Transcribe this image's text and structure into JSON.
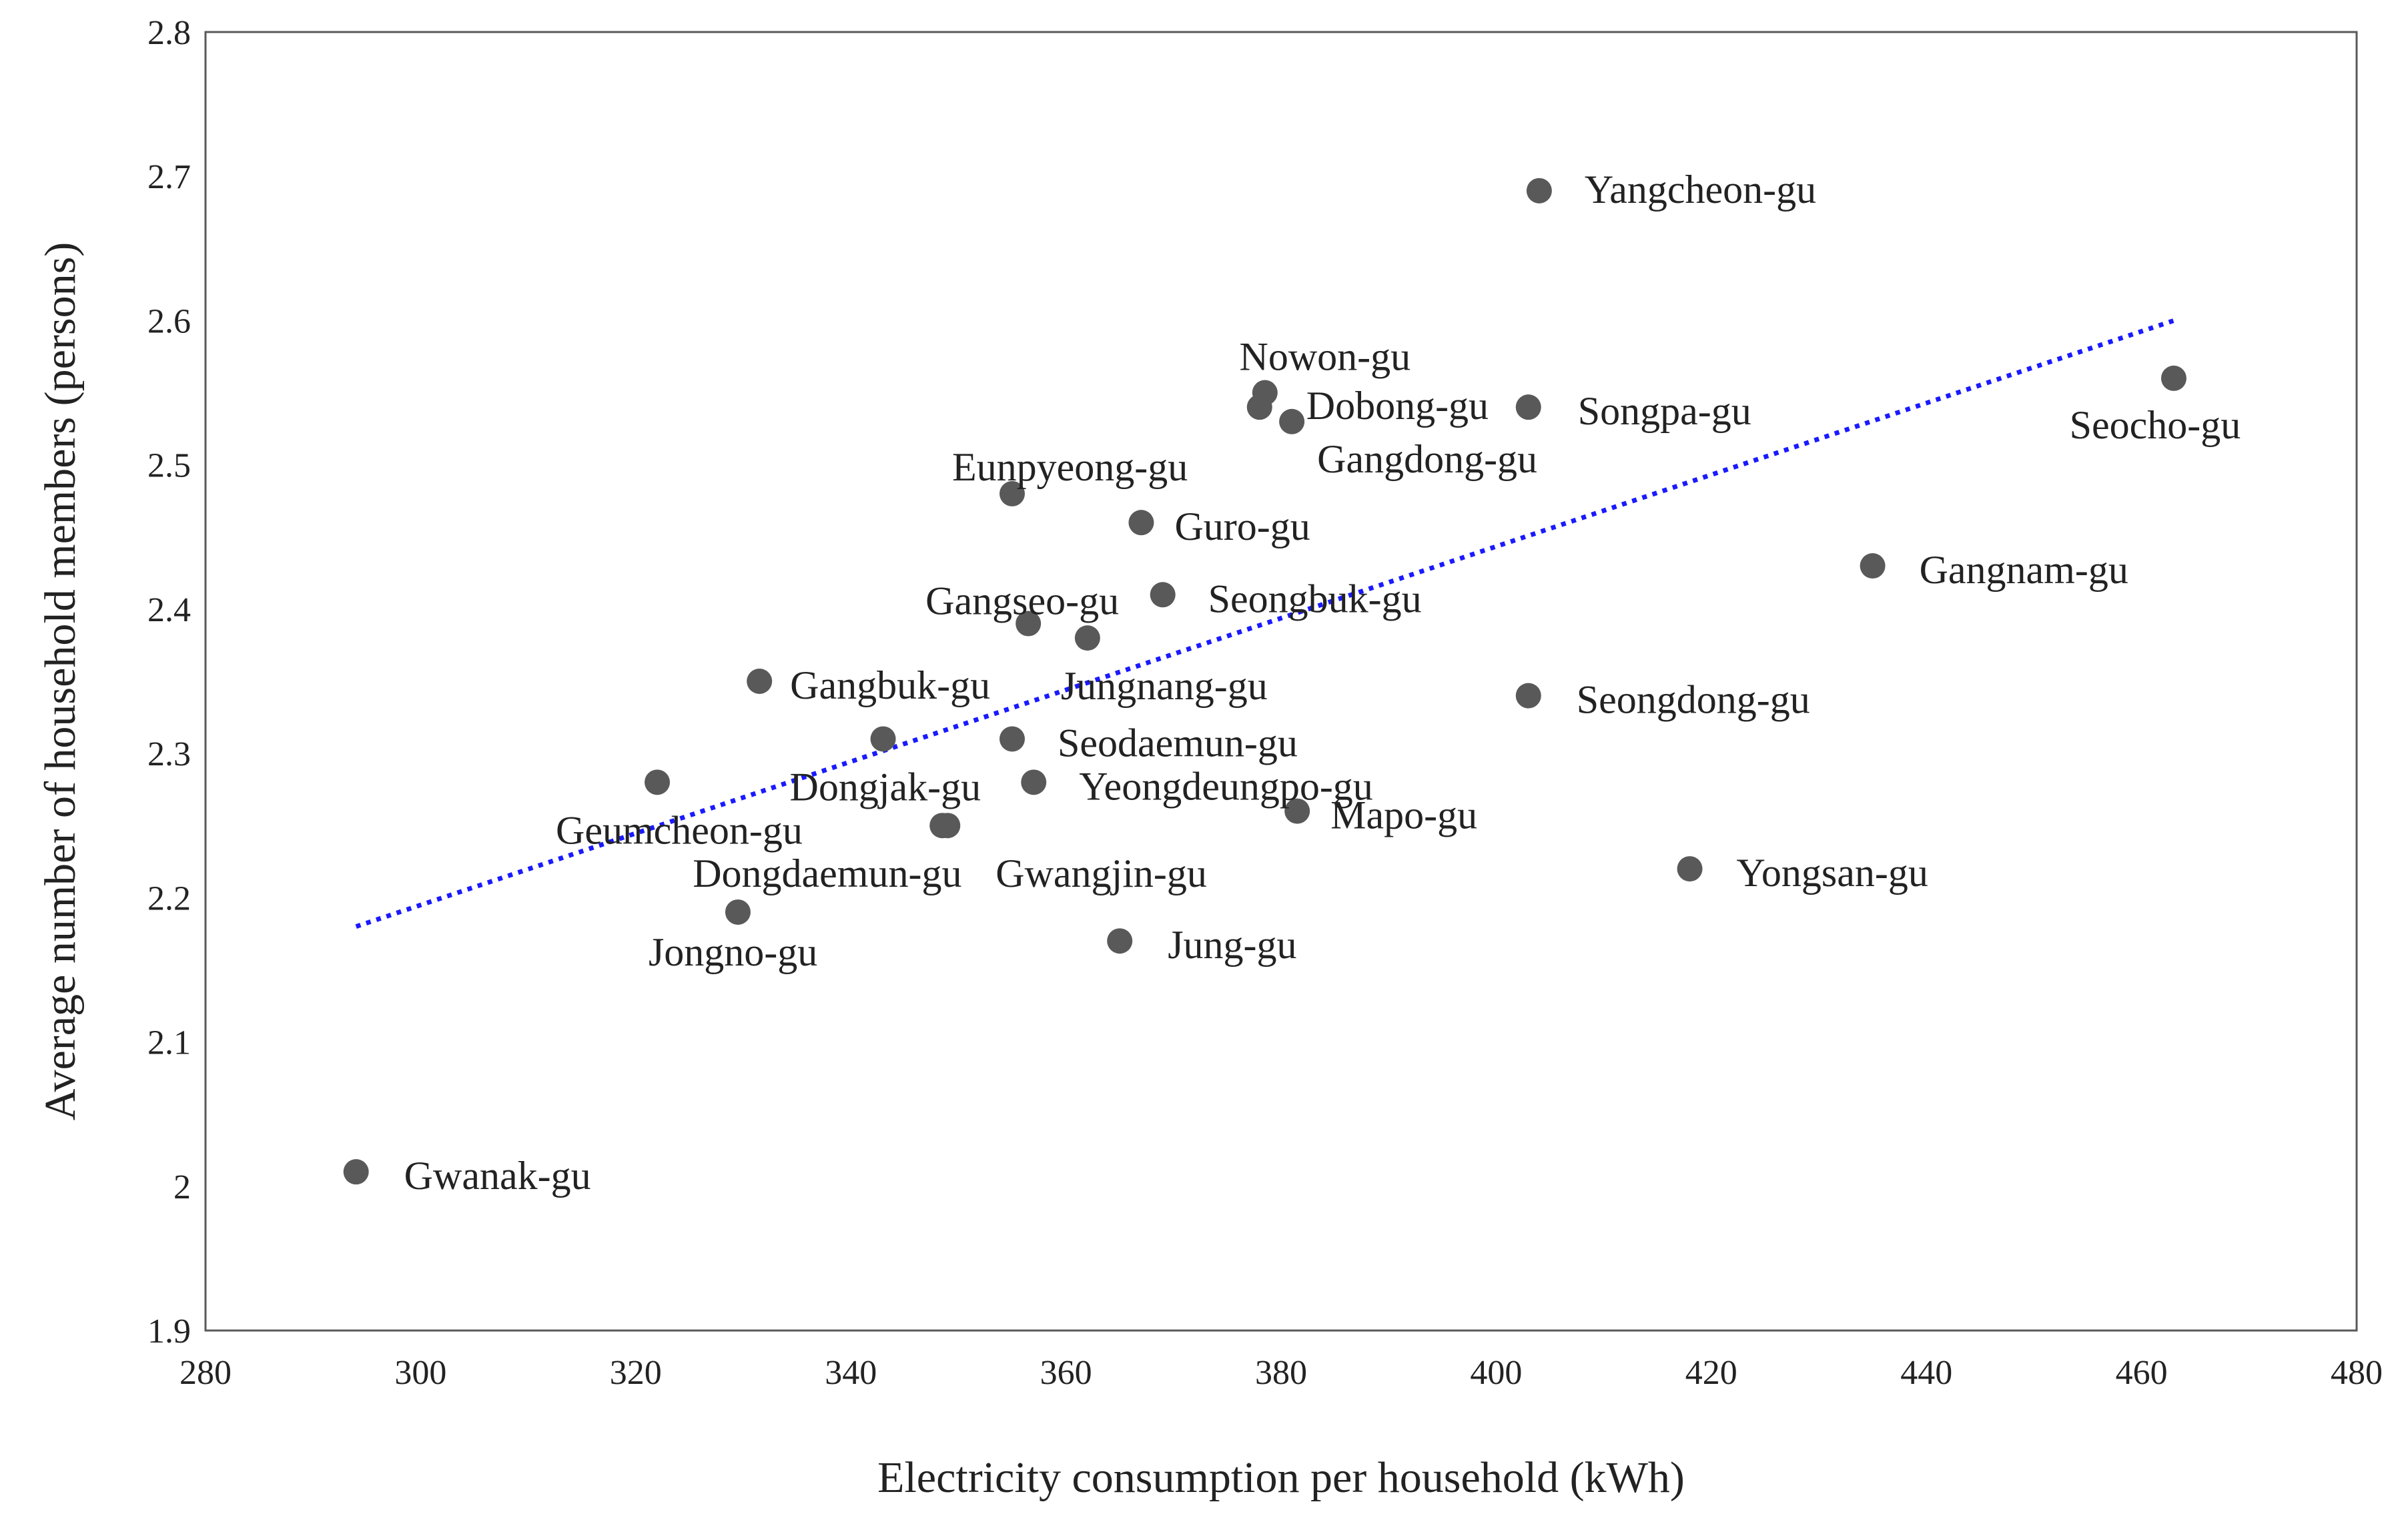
{
  "chart_data": {
    "type": "scatter",
    "title": "",
    "xlabel": "Electricity consumption per household (kWh)",
    "ylabel": "Average number of household members (persons)",
    "xlim": [
      280,
      480
    ],
    "ylim": [
      1.9,
      2.8
    ],
    "xticks": [
      "280",
      "300",
      "320",
      "340",
      "360",
      "380",
      "400",
      "420",
      "440",
      "460",
      "480"
    ],
    "yticks": [
      "1.9",
      "2",
      "2.1",
      "2.2",
      "2.3",
      "2.4",
      "2.5",
      "2.6",
      "2.7",
      "2.8"
    ],
    "grid": false,
    "legend": "none",
    "colors": {
      "points": "#595959",
      "trendline": "#1a1aff",
      "axis": "#595959"
    },
    "trendline": {
      "style": "dotted",
      "x": [
        294,
        463
      ],
      "y": [
        2.18,
        2.6
      ]
    },
    "points": [
      {
        "name": "Yangcheon-gu",
        "x": 404,
        "y": 2.69
      },
      {
        "name": "Nowon-gu",
        "x": 378.5,
        "y": 2.55
      },
      {
        "name": "Dobong-gu",
        "x": 378,
        "y": 2.54
      },
      {
        "name": "Gangdong-gu",
        "x": 381,
        "y": 2.53
      },
      {
        "name": "Songpa-gu",
        "x": 403,
        "y": 2.54
      },
      {
        "name": "Seocho-gu",
        "x": 463,
        "y": 2.56
      },
      {
        "name": "Eunpyeong-gu",
        "x": 355,
        "y": 2.48
      },
      {
        "name": "Guro-gu",
        "x": 367,
        "y": 2.46
      },
      {
        "name": "Gangnam-gu",
        "x": 435,
        "y": 2.43
      },
      {
        "name": "Seongbuk-gu",
        "x": 369,
        "y": 2.41
      },
      {
        "name": "Gangseo-gu",
        "x": 356.5,
        "y": 2.39
      },
      {
        "name": "Jungnang-gu",
        "x": 362,
        "y": 2.38
      },
      {
        "name": "Gangbuk-gu",
        "x": 331.5,
        "y": 2.35
      },
      {
        "name": "Seongdong-gu",
        "x": 403,
        "y": 2.34
      },
      {
        "name": "Dongjak-gu",
        "x": 343,
        "y": 2.31
      },
      {
        "name": "Seodaemun-gu",
        "x": 355,
        "y": 2.31
      },
      {
        "name": "Geumcheon-gu",
        "x": 322,
        "y": 2.28
      },
      {
        "name": "Yeongdeungpo-gu",
        "x": 357,
        "y": 2.28
      },
      {
        "name": "Mapo-gu",
        "x": 381.5,
        "y": 2.26
      },
      {
        "name": "Dongdaemun-gu",
        "x": 348.5,
        "y": 2.25
      },
      {
        "name": "Gwangjin-gu",
        "x": 349,
        "y": 2.25
      },
      {
        "name": "Yongsan-gu",
        "x": 418,
        "y": 2.22
      },
      {
        "name": "Jongno-gu",
        "x": 329.5,
        "y": 2.19
      },
      {
        "name": "Jung-gu",
        "x": 365,
        "y": 2.17
      },
      {
        "name": "Gwanak-gu",
        "x": 294,
        "y": 2.01
      }
    ]
  }
}
